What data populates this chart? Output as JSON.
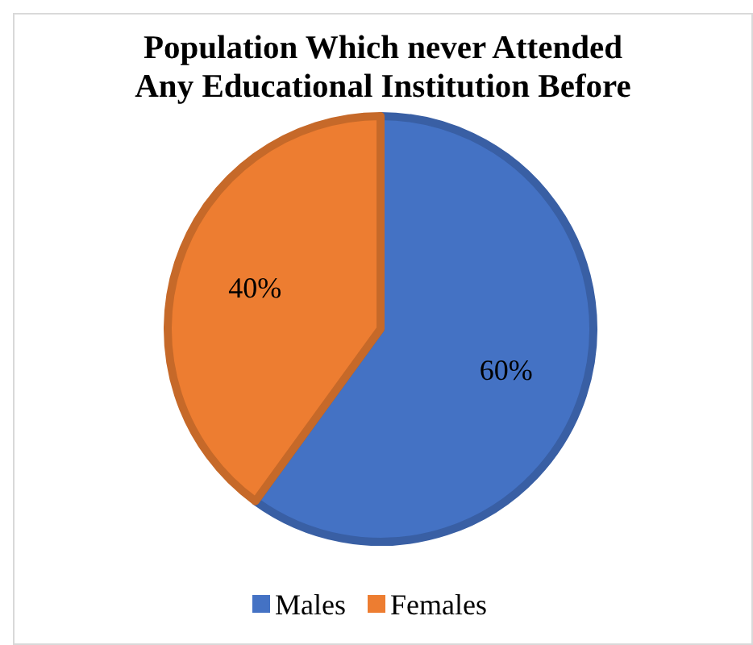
{
  "chart_data": {
    "type": "pie",
    "title": "Population Which never Attended Any Educational Institution Before",
    "categories": [
      "Males",
      "Females"
    ],
    "values": [
      60,
      40
    ],
    "colors": [
      "#4472c4",
      "#ed7d31"
    ],
    "value_labels": [
      "60%",
      "40%"
    ],
    "legend": "bottom"
  }
}
